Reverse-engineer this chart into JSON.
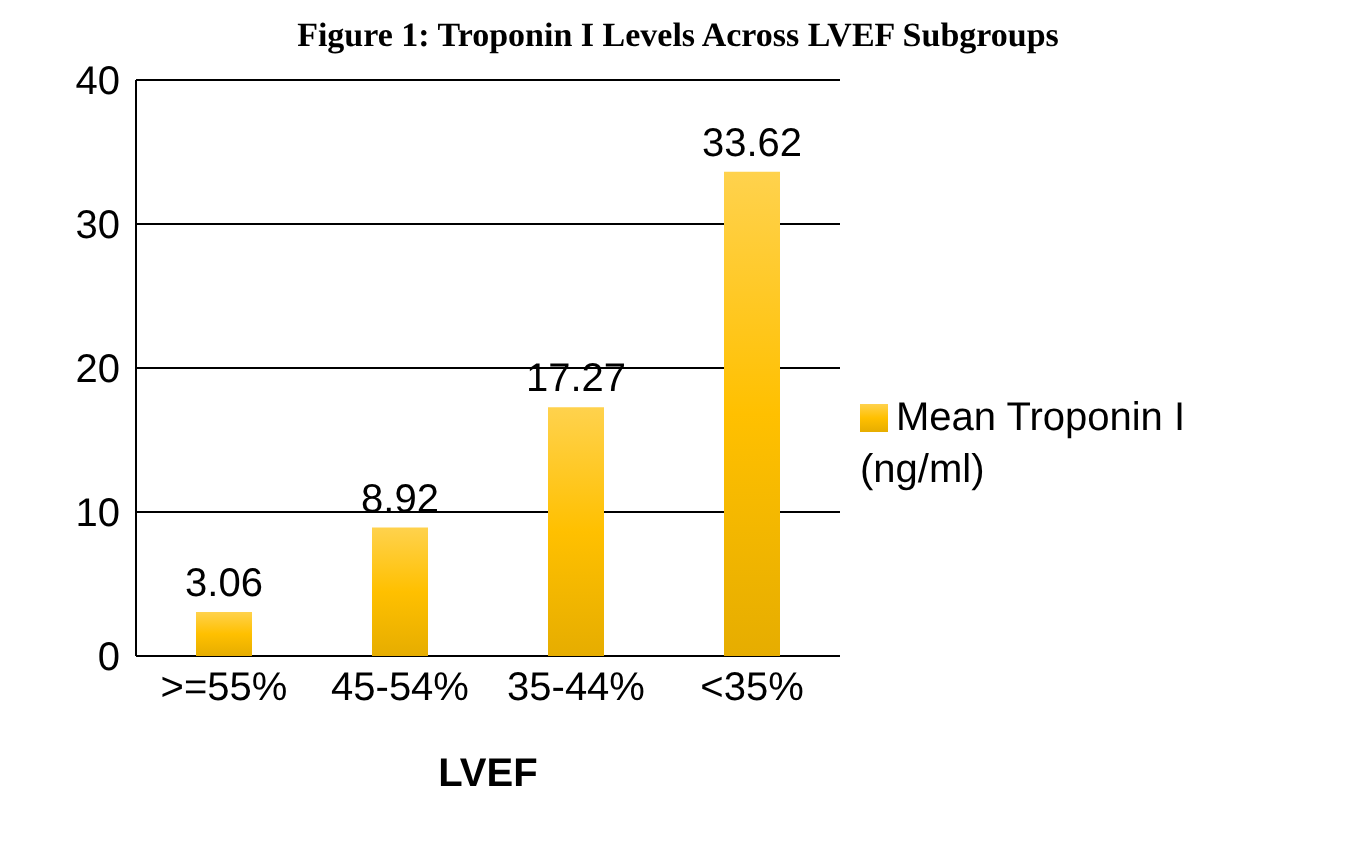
{
  "chart_data": {
    "type": "bar",
    "title": "Figure 1: Troponin I Levels Across LVEF Subgroups",
    "categories": [
      ">=55%",
      "45-54%",
      "35-44%",
      "<35%"
    ],
    "series": [
      {
        "name": "Mean Troponin I (ng/ml)",
        "color": "#ffc000",
        "values": [
          3.06,
          8.92,
          17.27,
          33.62
        ]
      }
    ],
    "xlabel": "LVEF",
    "ylim": [
      0,
      40
    ],
    "yticks": [
      0,
      10,
      20,
      30,
      40
    ],
    "grid": "y",
    "legend": "right",
    "data_labels": true
  }
}
